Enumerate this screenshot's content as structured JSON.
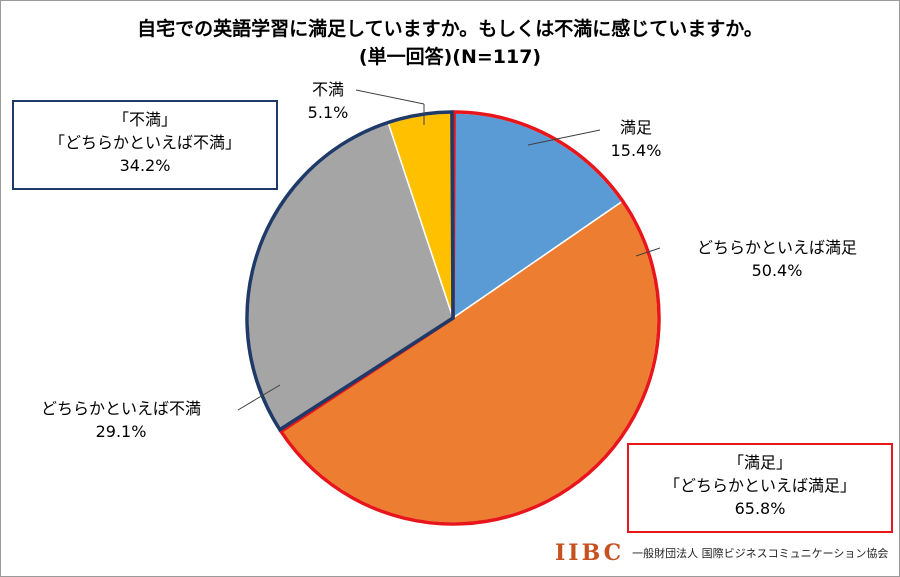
{
  "chart_data": {
    "type": "pie",
    "title": "自宅での英語学習に満足していますか。もしくは不満に感じていますか。",
    "subtitle": "(単一回答)(N=117)",
    "slices": [
      {
        "label": "満足",
        "value": 15.4,
        "value_label": "15.4%",
        "color": "#5b9bd5"
      },
      {
        "label": "どちらかといえば満足",
        "value": 50.4,
        "value_label": "50.4%",
        "color": "#ed7d31"
      },
      {
        "label": "どちらかといえば不満",
        "value": 29.1,
        "value_label": "29.1%",
        "color": "#a5a5a5"
      },
      {
        "label": "不満",
        "value": 5.1,
        "value_label": "5.1%",
        "color": "#ffc000"
      }
    ],
    "groups": [
      {
        "lines": [
          "「満足」",
          "「どちらかといえば満足」",
          "65.8%"
        ],
        "value": 65.8,
        "border_color": "#e8161b"
      },
      {
        "lines": [
          "「不満」",
          "「どちらかといえば不満」",
          "34.2%"
        ],
        "value": 34.2,
        "border_color": "#1f3a68"
      }
    ]
  },
  "logo": {
    "mark": "IIBC",
    "text": "一般財団法人 国際ビジネスコミュニケーション協会"
  }
}
